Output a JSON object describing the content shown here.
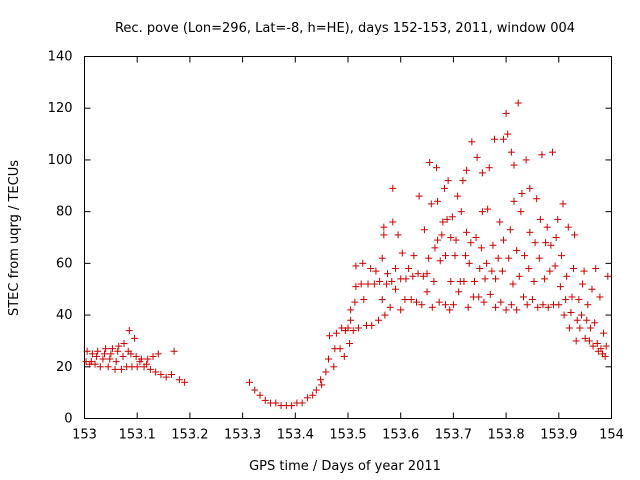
{
  "chart_data": {
    "type": "scatter",
    "title": "Rec. pove (Lon=296, Lat=-8, h=HE), days 152-153, 2011, window 004",
    "xlabel": "GPS time / Days of year 2011",
    "ylabel": "STEC from uqrg / TECUs",
    "xlim": [
      153,
      154
    ],
    "ylim": [
      0,
      140
    ],
    "xticks": [
      "153",
      "153.1",
      "153.2",
      "153.3",
      "153.4",
      "153.5",
      "153.6",
      "153.7",
      "153.8",
      "153.9",
      "154"
    ],
    "yticks": [
      "0",
      "20",
      "40",
      "60",
      "80",
      "100",
      "120",
      "140"
    ],
    "grid": false,
    "marker": "+",
    "series": [
      {
        "color": "#cc0000",
        "points": [
          [
            153.003,
            22
          ],
          [
            153.005,
            26
          ],
          [
            153.01,
            21
          ],
          [
            153.013,
            22
          ],
          [
            153.015,
            25
          ],
          [
            153.02,
            21
          ],
          [
            153.023,
            24
          ],
          [
            153.025,
            26
          ],
          [
            153.03,
            20
          ],
          [
            153.035,
            23
          ],
          [
            153.038,
            25
          ],
          [
            153.04,
            27
          ],
          [
            153.045,
            20
          ],
          [
            153.048,
            23
          ],
          [
            153.05,
            25
          ],
          [
            153.053,
            27
          ],
          [
            153.058,
            19
          ],
          [
            153.06,
            22
          ],
          [
            153.063,
            26
          ],
          [
            153.065,
            28
          ],
          [
            153.07,
            19
          ],
          [
            153.073,
            24
          ],
          [
            153.075,
            29
          ],
          [
            153.08,
            20
          ],
          [
            153.083,
            26
          ],
          [
            153.085,
            34
          ],
          [
            153.088,
            25
          ],
          [
            153.09,
            20
          ],
          [
            153.095,
            31
          ],
          [
            153.098,
            24
          ],
          [
            153.1,
            20
          ],
          [
            153.105,
            22
          ],
          [
            153.108,
            23
          ],
          [
            153.113,
            20
          ],
          [
            153.118,
            21
          ],
          [
            153.12,
            23
          ],
          [
            153.125,
            19
          ],
          [
            153.13,
            24
          ],
          [
            153.135,
            18
          ],
          [
            153.14,
            25
          ],
          [
            153.145,
            17
          ],
          [
            153.155,
            16
          ],
          [
            153.165,
            17
          ],
          [
            153.17,
            26
          ],
          [
            153.18,
            15
          ],
          [
            153.19,
            14
          ],
          [
            153.313,
            14
          ],
          [
            153.323,
            11
          ],
          [
            153.333,
            9
          ],
          [
            153.343,
            7
          ],
          [
            153.353,
            6
          ],
          [
            153.363,
            6
          ],
          [
            153.373,
            5
          ],
          [
            153.383,
            5
          ],
          [
            153.393,
            5
          ],
          [
            153.403,
            6
          ],
          [
            153.413,
            6
          ],
          [
            153.423,
            8
          ],
          [
            153.433,
            9
          ],
          [
            153.44,
            11
          ],
          [
            153.448,
            15
          ],
          [
            153.45,
            13
          ],
          [
            153.458,
            18
          ],
          [
            153.463,
            23
          ],
          [
            153.465,
            32
          ],
          [
            153.473,
            20
          ],
          [
            153.475,
            27
          ],
          [
            153.478,
            33
          ],
          [
            153.485,
            27
          ],
          [
            153.488,
            35
          ],
          [
            153.493,
            24
          ],
          [
            153.495,
            34
          ],
          [
            153.5,
            35
          ],
          [
            153.503,
            29
          ],
          [
            153.505,
            38
          ],
          [
            153.505,
            42
          ],
          [
            153.51,
            34
          ],
          [
            153.513,
            45
          ],
          [
            153.515,
            51
          ],
          [
            153.515,
            59
          ],
          [
            153.52,
            35
          ],
          [
            153.525,
            52
          ],
          [
            153.528,
            60
          ],
          [
            153.53,
            46
          ],
          [
            153.535,
            36
          ],
          [
            153.538,
            52
          ],
          [
            153.543,
            58
          ],
          [
            153.545,
            36
          ],
          [
            153.55,
            52
          ],
          [
            153.553,
            57
          ],
          [
            153.558,
            38
          ],
          [
            153.56,
            53
          ],
          [
            153.565,
            46
          ],
          [
            153.565,
            62
          ],
          [
            153.568,
            71
          ],
          [
            153.568,
            74
          ],
          [
            153.57,
            40
          ],
          [
            153.573,
            52
          ],
          [
            153.575,
            56
          ],
          [
            153.58,
            43
          ],
          [
            153.583,
            53
          ],
          [
            153.585,
            76
          ],
          [
            153.585,
            89
          ],
          [
            153.59,
            50
          ],
          [
            153.59,
            58
          ],
          [
            153.595,
            71
          ],
          [
            153.6,
            42
          ],
          [
            153.6,
            54
          ],
          [
            153.603,
            64
          ],
          [
            153.608,
            46
          ],
          [
            153.61,
            54
          ],
          [
            153.615,
            58
          ],
          [
            153.62,
            46
          ],
          [
            153.623,
            55
          ],
          [
            153.625,
            63
          ],
          [
            153.63,
            45
          ],
          [
            153.633,
            56
          ],
          [
            153.635,
            86
          ],
          [
            153.64,
            44
          ],
          [
            153.643,
            55
          ],
          [
            153.645,
            73
          ],
          [
            153.65,
            49
          ],
          [
            153.65,
            56
          ],
          [
            153.653,
            62
          ],
          [
            153.655,
            99
          ],
          [
            153.658,
            83
          ],
          [
            153.66,
            43
          ],
          [
            153.663,
            53
          ],
          [
            153.665,
            66
          ],
          [
            153.668,
            97
          ],
          [
            153.67,
            69
          ],
          [
            153.67,
            84
          ],
          [
            153.673,
            45
          ],
          [
            153.675,
            61
          ],
          [
            153.678,
            71
          ],
          [
            153.68,
            76
          ],
          [
            153.683,
            89
          ],
          [
            153.685,
            44
          ],
          [
            153.685,
            63
          ],
          [
            153.688,
            77
          ],
          [
            153.69,
            92
          ],
          [
            153.693,
            42
          ],
          [
            153.695,
            53
          ],
          [
            153.695,
            70
          ],
          [
            153.698,
            78
          ],
          [
            153.7,
            44
          ],
          [
            153.703,
            63
          ],
          [
            153.705,
            69
          ],
          [
            153.708,
            86
          ],
          [
            153.71,
            49
          ],
          [
            153.713,
            53
          ],
          [
            153.715,
            80
          ],
          [
            153.718,
            92
          ],
          [
            153.72,
            53
          ],
          [
            153.723,
            63
          ],
          [
            153.725,
            72
          ],
          [
            153.725,
            96
          ],
          [
            153.728,
            43
          ],
          [
            153.73,
            60
          ],
          [
            153.733,
            68
          ],
          [
            153.735,
            107
          ],
          [
            153.738,
            47
          ],
          [
            153.74,
            53
          ],
          [
            153.743,
            70
          ],
          [
            153.745,
            101
          ],
          [
            153.748,
            47
          ],
          [
            153.75,
            58
          ],
          [
            153.753,
            66
          ],
          [
            153.755,
            80
          ],
          [
            153.755,
            95
          ],
          [
            153.758,
            45
          ],
          [
            153.76,
            54
          ],
          [
            153.763,
            60
          ],
          [
            153.765,
            81
          ],
          [
            153.768,
            97
          ],
          [
            153.77,
            48
          ],
          [
            153.773,
            57
          ],
          [
            153.775,
            67
          ],
          [
            153.778,
            108
          ],
          [
            153.78,
            43
          ],
          [
            153.78,
            54
          ],
          [
            153.785,
            62
          ],
          [
            153.788,
            76
          ],
          [
            153.79,
            45
          ],
          [
            153.793,
            57
          ],
          [
            153.795,
            69
          ],
          [
            153.795,
            108
          ],
          [
            153.8,
            42
          ],
          [
            153.8,
            118
          ],
          [
            153.803,
            110
          ],
          [
            153.805,
            62
          ],
          [
            153.808,
            73
          ],
          [
            153.81,
            44
          ],
          [
            153.81,
            103
          ],
          [
            153.813,
            52
          ],
          [
            153.815,
            84
          ],
          [
            153.815,
            98
          ],
          [
            153.82,
            42
          ],
          [
            153.82,
            65
          ],
          [
            153.823,
            122
          ],
          [
            153.825,
            55
          ],
          [
            153.828,
            80
          ],
          [
            153.83,
            87
          ],
          [
            153.833,
            47
          ],
          [
            153.835,
            63
          ],
          [
            153.838,
            100
          ],
          [
            153.84,
            44
          ],
          [
            153.843,
            58
          ],
          [
            153.845,
            72
          ],
          [
            153.845,
            89
          ],
          [
            153.85,
            46
          ],
          [
            153.853,
            53
          ],
          [
            153.855,
            68
          ],
          [
            153.858,
            85
          ],
          [
            153.86,
            43
          ],
          [
            153.863,
            62
          ],
          [
            153.865,
            77
          ],
          [
            153.868,
            102
          ],
          [
            153.87,
            44
          ],
          [
            153.873,
            54
          ],
          [
            153.875,
            68
          ],
          [
            153.878,
            74
          ],
          [
            153.88,
            43
          ],
          [
            153.883,
            57
          ],
          [
            153.885,
            67
          ],
          [
            153.888,
            103
          ],
          [
            153.89,
            44
          ],
          [
            153.893,
            59
          ],
          [
            153.895,
            70
          ],
          [
            153.898,
            77
          ],
          [
            153.9,
            44
          ],
          [
            153.903,
            51
          ],
          [
            153.905,
            63
          ],
          [
            153.908,
            83
          ],
          [
            153.91,
            40
          ],
          [
            153.913,
            46
          ],
          [
            153.915,
            55
          ],
          [
            153.918,
            74
          ],
          [
            153.92,
            35
          ],
          [
            153.923,
            41
          ],
          [
            153.925,
            47
          ],
          [
            153.928,
            58
          ],
          [
            153.93,
            71
          ],
          [
            153.933,
            30
          ],
          [
            153.935,
            38
          ],
          [
            153.938,
            46
          ],
          [
            153.94,
            35
          ],
          [
            153.943,
            40
          ],
          [
            153.945,
            52
          ],
          [
            153.948,
            57
          ],
          [
            153.95,
            31
          ],
          [
            153.953,
            38
          ],
          [
            153.955,
            44
          ],
          [
            153.958,
            30
          ],
          [
            153.96,
            35
          ],
          [
            153.963,
            50
          ],
          [
            153.965,
            28
          ],
          [
            153.968,
            37
          ],
          [
            153.97,
            58
          ],
          [
            153.973,
            29
          ],
          [
            153.975,
            26
          ],
          [
            153.978,
            47
          ],
          [
            153.98,
            27
          ],
          [
            153.983,
            25
          ],
          [
            153.985,
            33
          ],
          [
            153.988,
            24
          ],
          [
            153.99,
            28
          ],
          [
            153.993,
            55
          ]
        ]
      }
    ]
  }
}
